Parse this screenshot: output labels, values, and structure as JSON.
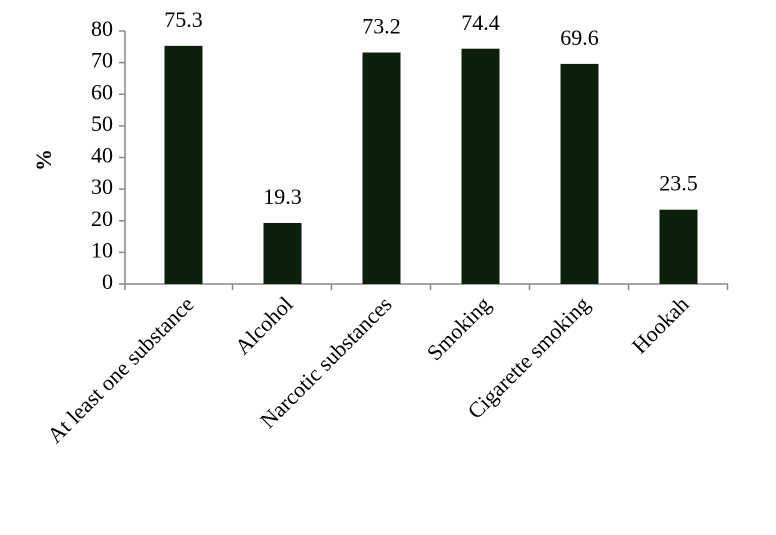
{
  "chart_data": {
    "type": "bar",
    "y_label": "%",
    "categories": [
      "At least one substance",
      "Alcohol",
      "Narcotic substances",
      "Smoking",
      "Cigarette smoking",
      "Hookah"
    ],
    "values": [
      75.3,
      19.3,
      73.2,
      74.4,
      69.6,
      23.5
    ],
    "color": "#0b1f0b",
    "ylim": [
      0,
      80
    ],
    "yticks": [
      0,
      10,
      20,
      30,
      40,
      50,
      60,
      70,
      80
    ],
    "grid": false
  }
}
